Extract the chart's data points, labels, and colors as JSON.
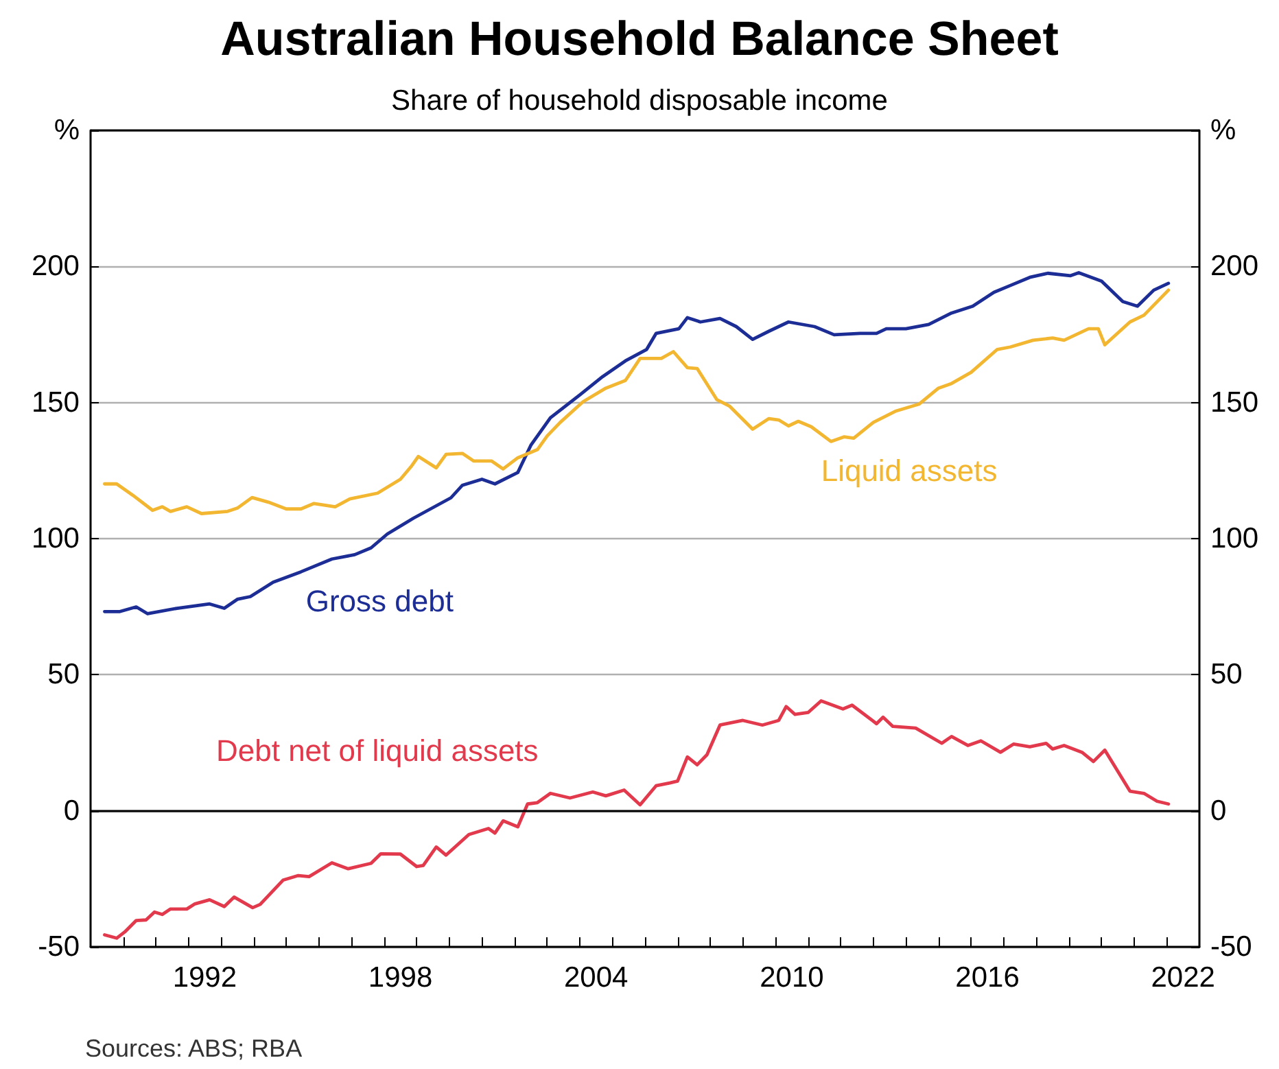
{
  "chart_data": {
    "type": "line",
    "title": "Australian Household Balance Sheet",
    "subtitle": "Share of household disposable income",
    "xlim": [
      1989,
      2023
    ],
    "xticks": [
      {
        "value": 1990,
        "label": null
      },
      {
        "value": 1991,
        "label": null
      },
      {
        "value": 1992,
        "label": null
      },
      {
        "value": 1993,
        "label": null
      },
      {
        "value": 1994,
        "label": null
      },
      {
        "value": 1995,
        "label": null
      },
      {
        "value": 1996,
        "label": null
      },
      {
        "value": 1997,
        "label": null
      },
      {
        "value": 1998,
        "label": null
      },
      {
        "value": 1999,
        "label": null
      },
      {
        "value": 2000,
        "label": null
      },
      {
        "value": 2001,
        "label": null
      },
      {
        "value": 2002,
        "label": null
      },
      {
        "value": 2003,
        "label": null
      },
      {
        "value": 2004,
        "label": null
      },
      {
        "value": 2005,
        "label": null
      },
      {
        "value": 2006,
        "label": null
      },
      {
        "value": 2007,
        "label": null
      },
      {
        "value": 2008,
        "label": null
      },
      {
        "value": 2009,
        "label": null
      },
      {
        "value": 2010,
        "label": null
      },
      {
        "value": 2011,
        "label": null
      },
      {
        "value": 2012,
        "label": null
      },
      {
        "value": 2013,
        "label": null
      },
      {
        "value": 2014,
        "label": null
      },
      {
        "value": 2015,
        "label": null
      },
      {
        "value": 2016,
        "label": null
      },
      {
        "value": 2017,
        "label": null
      },
      {
        "value": 2018,
        "label": null
      },
      {
        "value": 2019,
        "label": null
      },
      {
        "value": 2020,
        "label": null
      },
      {
        "value": 2021,
        "label": null
      },
      {
        "value": 2022,
        "label": null
      },
      {
        "value": 1992.5,
        "label": "1992"
      },
      {
        "value": 1998.5,
        "label": "1998"
      },
      {
        "value": 2004.5,
        "label": "2004"
      },
      {
        "value": 2010.5,
        "label": "2010"
      },
      {
        "value": 2016.5,
        "label": "2016"
      },
      {
        "value": 2022.5,
        "label": "2022"
      }
    ],
    "ylim": [
      -50,
      250
    ],
    "yticks": [
      -50,
      0,
      50,
      100,
      150,
      200,
      {
        "value": 250,
        "label": "%"
      }
    ],
    "y2lim": [
      -50,
      250
    ],
    "y2ticks": [
      -50,
      0,
      50,
      100,
      150,
      200,
      {
        "value": 250,
        "label": "%"
      }
    ],
    "grid": "y",
    "legend": false,
    "marker": "none",
    "line_style": "solid",
    "ref_lines": [
      {
        "axis": "y",
        "value": 0,
        "color": "#000000"
      }
    ],
    "annotations": [
      "Sources: ABS; RBA"
    ],
    "series": [
      {
        "name": "Gross debt",
        "color": "#1c2d96",
        "x": [
          1989.43,
          1989.9,
          1990.4,
          1990.75,
          1991.65,
          1992.65,
          1993.1,
          1993.5,
          1993.9,
          1994.6,
          1995.45,
          1996.4,
          1997.1,
          1997.6,
          1998.1,
          1998.9,
          2000.05,
          2000.4,
          2001.0,
          2001.4,
          2002.1,
          2002.5,
          2003.1,
          2004.0,
          2004.7,
          2005.4,
          2006.05,
          2006.34,
          2007.04,
          2007.3,
          2007.7,
          2008.3,
          2008.8,
          2009.3,
          2009.8,
          2010.4,
          2011.2,
          2011.8,
          2012.6,
          2013.1,
          2013.4,
          2014.0,
          2014.7,
          2015.4,
          2016.05,
          2016.7,
          2017.2,
          2017.8,
          2018.35,
          2019.05,
          2019.3,
          2020.0,
          2020.65,
          2021.1,
          2021.6,
          2022.05
        ],
        "values": [
          73.2,
          73.2,
          74.9,
          72.4,
          74.4,
          76.0,
          74.4,
          77.7,
          78.7,
          84.0,
          87.8,
          92.5,
          94.1,
          96.6,
          101.7,
          107.5,
          115.0,
          119.6,
          121.8,
          120.1,
          124.3,
          134.3,
          144.4,
          152.8,
          159.5,
          165.3,
          169.5,
          175.4,
          177.1,
          181.2,
          179.6,
          180.9,
          177.9,
          173.2,
          176.2,
          179.6,
          177.9,
          174.9,
          175.4,
          175.4,
          177.1,
          177.1,
          178.7,
          182.9,
          185.4,
          190.5,
          193.0,
          196.0,
          197.5,
          196.6,
          197.7,
          194.6,
          187.1,
          185.4,
          191.3,
          193.8
        ]
      },
      {
        "name": "Liquid assets",
        "color": "#f2b630",
        "x": [
          1989.43,
          1989.8,
          1990.3,
          1990.9,
          1991.2,
          1991.45,
          1991.95,
          1992.4,
          1993.2,
          1993.5,
          1993.95,
          1994.45,
          1995.0,
          1995.45,
          1995.85,
          1996.5,
          1996.95,
          1997.8,
          1998.5,
          1998.85,
          1999.05,
          1999.6,
          1999.9,
          2000.4,
          2000.75,
          2001.3,
          2001.65,
          2002.1,
          2002.7,
          2003.0,
          2003.4,
          2004.1,
          2004.8,
          2005.4,
          2005.85,
          2006.5,
          2006.87,
          2007.3,
          2007.6,
          2008.2,
          2008.6,
          2009.3,
          2009.8,
          2010.1,
          2010.4,
          2010.7,
          2011.1,
          2011.7,
          2012.1,
          2012.4,
          2013.0,
          2013.7,
          2014.4,
          2015.0,
          2015.4,
          2016.0,
          2016.8,
          2017.2,
          2017.9,
          2018.5,
          2018.85,
          2019.6,
          2019.9,
          2020.1,
          2020.87,
          2021.3,
          2022.05
        ],
        "values": [
          120.1,
          120.1,
          115.9,
          110.4,
          111.7,
          110.0,
          111.7,
          109.2,
          110.0,
          111.2,
          115.1,
          113.4,
          110.9,
          110.9,
          112.9,
          111.7,
          114.6,
          116.7,
          121.8,
          126.8,
          130.2,
          126.0,
          131.0,
          131.3,
          128.5,
          128.5,
          125.6,
          129.7,
          132.7,
          137.7,
          142.7,
          150.3,
          155.3,
          158.1,
          166.2,
          166.2,
          168.7,
          162.8,
          162.5,
          151.1,
          148.6,
          140.2,
          144.1,
          143.6,
          141.4,
          143.1,
          141.1,
          135.7,
          137.4,
          136.9,
          142.7,
          146.9,
          149.4,
          155.3,
          157.0,
          161.1,
          169.5,
          170.4,
          172.9,
          173.7,
          172.9,
          177.1,
          177.1,
          171.2,
          179.6,
          182.1,
          191.3
        ]
      },
      {
        "name": "Debt net of liquid assets",
        "color": "#e23a4c",
        "x": [
          1989.43,
          1989.8,
          1990.05,
          1990.4,
          1990.7,
          1990.96,
          1991.2,
          1991.45,
          1991.95,
          1992.2,
          1992.65,
          1993.1,
          1993.4,
          1993.97,
          1994.2,
          1994.9,
          1995.37,
          1995.7,
          1996.4,
          1996.9,
          1997.6,
          1997.9,
          1998.5,
          1999.0,
          1999.2,
          1999.6,
          1999.9,
          2000.6,
          2001.2,
          2001.4,
          2001.65,
          2002.1,
          2002.4,
          2002.7,
          2003.1,
          2003.7,
          2004.4,
          2004.8,
          2005.36,
          2005.85,
          2006.34,
          2006.76,
          2007.0,
          2007.3,
          2007.6,
          2007.9,
          2008.3,
          2009.0,
          2009.6,
          2010.1,
          2010.33,
          2010.6,
          2011.0,
          2011.4,
          2012.07,
          2012.35,
          2013.1,
          2013.3,
          2013.6,
          2014.3,
          2015.1,
          2015.4,
          2015.9,
          2016.3,
          2016.9,
          2017.3,
          2017.8,
          2018.3,
          2018.5,
          2018.85,
          2019.4,
          2019.75,
          2020.1,
          2020.87,
          2021.3,
          2021.7,
          2022.05
        ],
        "values": [
          -45.6,
          -46.8,
          -44.5,
          -40.3,
          -40.1,
          -37.2,
          -38.1,
          -36.1,
          -36.1,
          -34.2,
          -32.7,
          -35.2,
          -31.7,
          -35.6,
          -34.4,
          -25.5,
          -23.8,
          -24.2,
          -19.1,
          -21.3,
          -19.3,
          -15.8,
          -15.9,
          -20.5,
          -20.1,
          -13.3,
          -16.3,
          -8.7,
          -6.5,
          -8.2,
          -3.7,
          -5.9,
          2.5,
          3.0,
          6.4,
          4.7,
          6.9,
          5.5,
          7.6,
          2.2,
          9.2,
          10.2,
          10.9,
          19.8,
          16.9,
          20.6,
          31.5,
          33.2,
          31.5,
          33.2,
          38.3,
          35.4,
          36.1,
          40.4,
          37.4,
          38.8,
          32.0,
          34.4,
          31.0,
          30.4,
          24.8,
          27.3,
          24.0,
          25.7,
          21.5,
          24.5,
          23.5,
          24.8,
          22.7,
          24.0,
          21.5,
          18.1,
          22.3,
          7.2,
          6.4,
          3.5,
          2.5
        ]
      }
    ]
  }
}
